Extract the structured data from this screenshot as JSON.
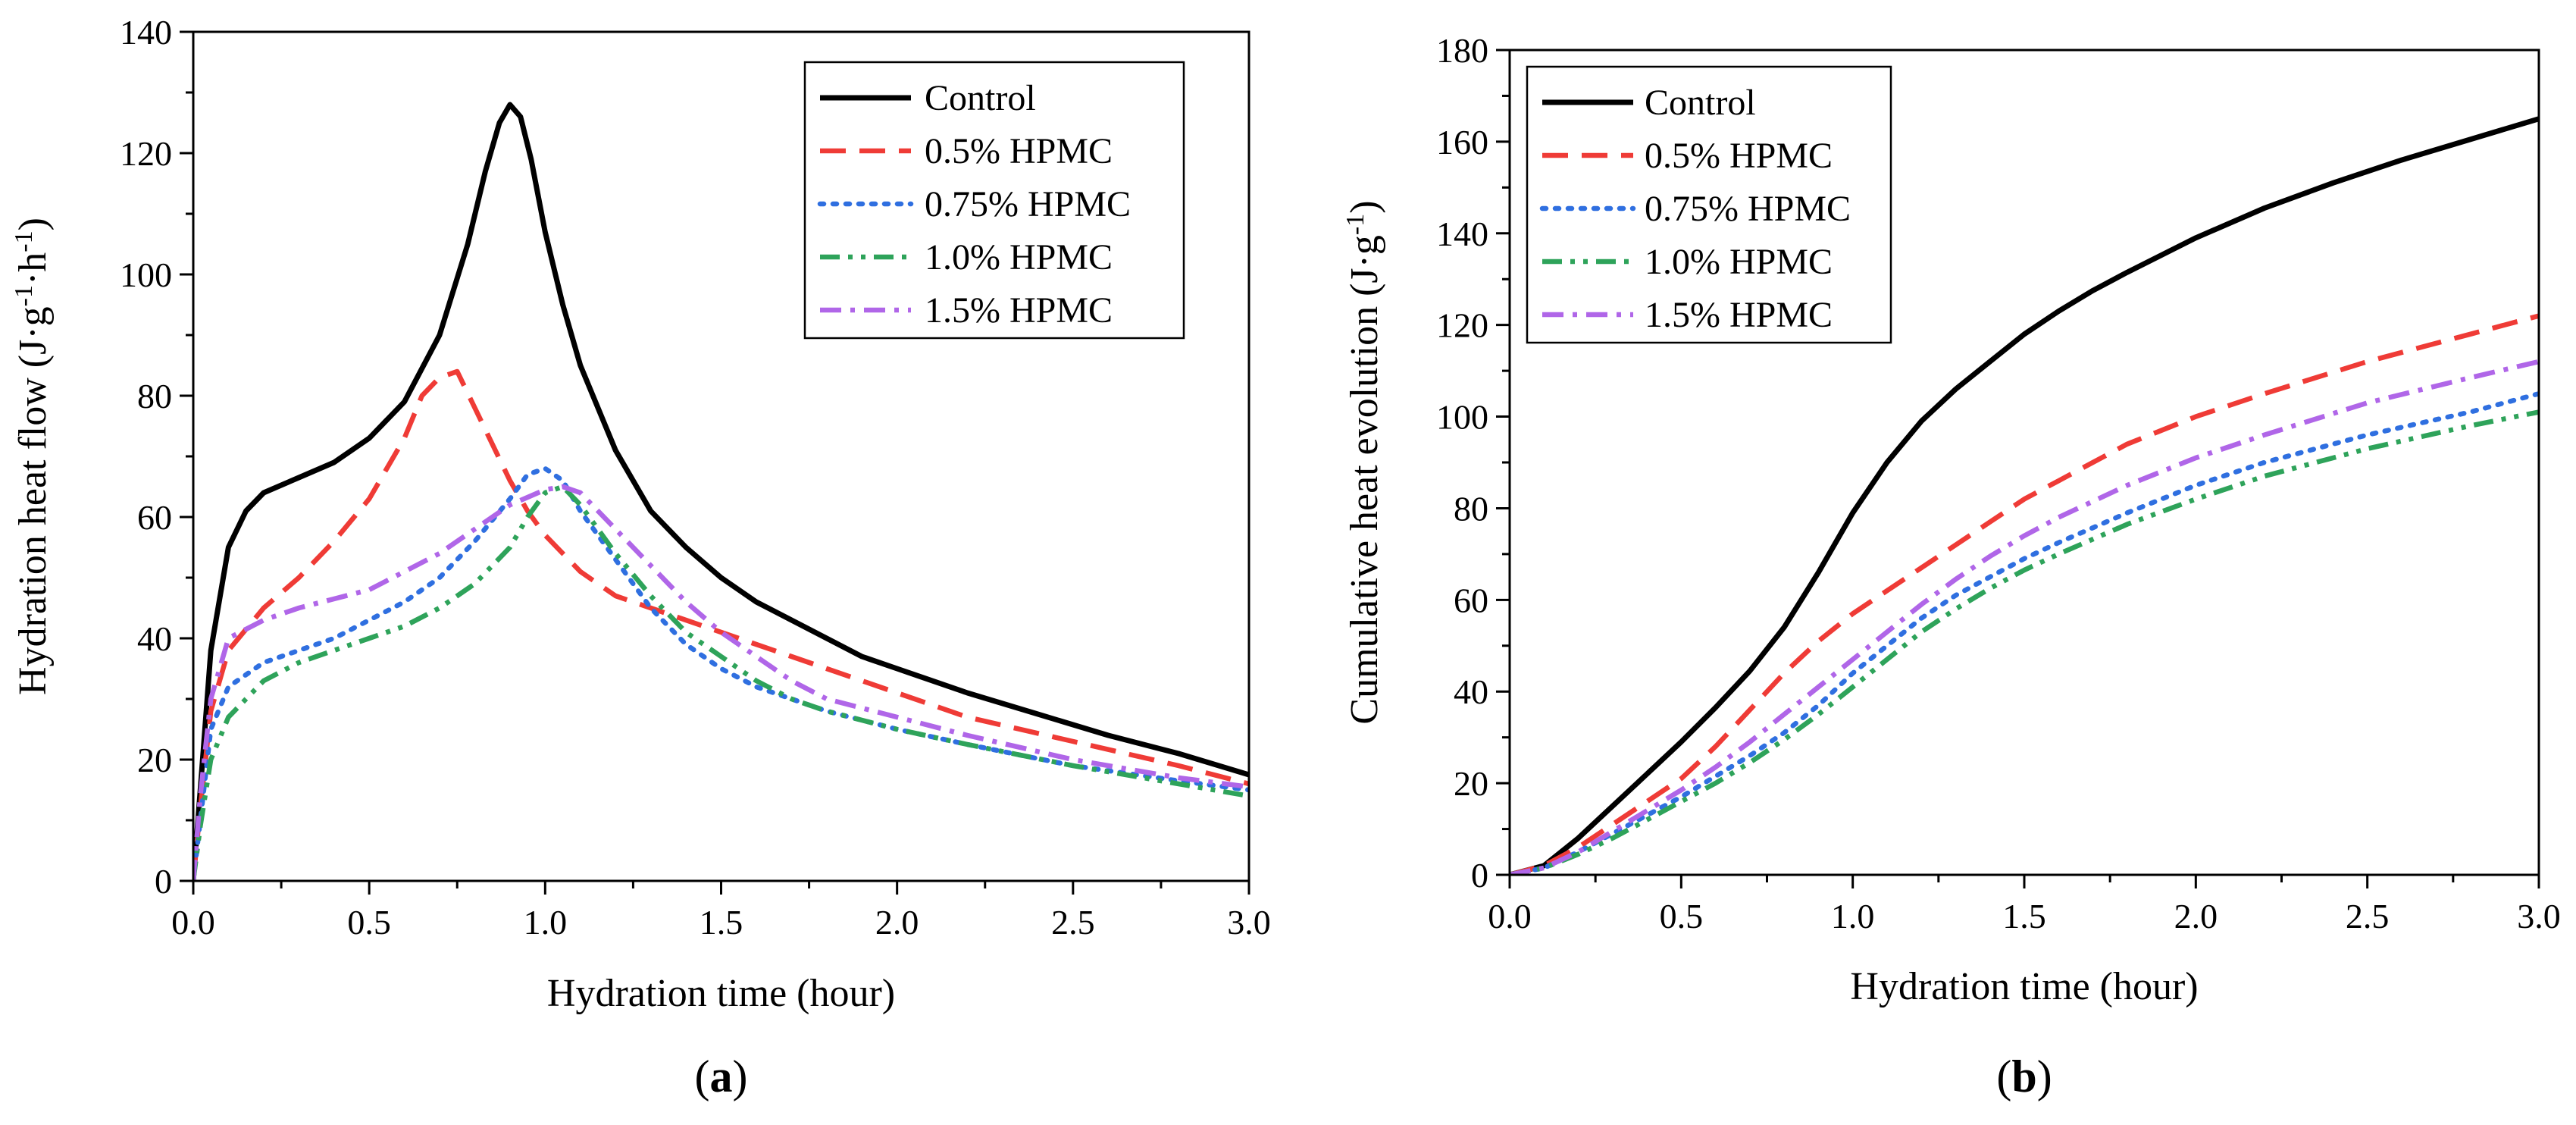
{
  "series_styles": [
    {
      "name": "Control",
      "color": "#000000",
      "dash": "solid"
    },
    {
      "name": "0.5% HPMC",
      "color": "#ef3b36",
      "dash": "dashed"
    },
    {
      "name": "0.75% HPMC",
      "color": "#2f6fe0",
      "dash": "dotted"
    },
    {
      "name": "1.0% HPMC",
      "color": "#2ea35a",
      "dash": "dash-dot-dot"
    },
    {
      "name": "1.5% HPMC",
      "color": "#b066e8",
      "dash": "dash-dot"
    }
  ],
  "chart_data": [
    {
      "panel": "(a)",
      "panel_letter": "a",
      "type": "line",
      "title": "",
      "xlabel": "Hydration time (hour)",
      "ylabel_parts": [
        "Hydration heat flow (J·g",
        "-1",
        "·h",
        "-1",
        ")"
      ],
      "xlim": [
        0,
        3
      ],
      "ylim": [
        0,
        140
      ],
      "xticks": [
        "0.0",
        "0.5",
        "1.0",
        "1.5",
        "2.0",
        "2.5",
        "3.0"
      ],
      "yticks": [
        "0",
        "20",
        "40",
        "60",
        "80",
        "100",
        "120",
        "140"
      ],
      "legend_position": "top-right",
      "series": [
        {
          "name": "Control",
          "points": [
            [
              0,
              0
            ],
            [
              0.02,
              15
            ],
            [
              0.05,
              38
            ],
            [
              0.1,
              55
            ],
            [
              0.15,
              61
            ],
            [
              0.2,
              64
            ],
            [
              0.3,
              66.5
            ],
            [
              0.4,
              69
            ],
            [
              0.5,
              73
            ],
            [
              0.6,
              79
            ],
            [
              0.7,
              90
            ],
            [
              0.78,
              105
            ],
            [
              0.83,
              117
            ],
            [
              0.87,
              125
            ],
            [
              0.9,
              128
            ],
            [
              0.93,
              126
            ],
            [
              0.96,
              119
            ],
            [
              1.0,
              107
            ],
            [
              1.05,
              95
            ],
            [
              1.1,
              85
            ],
            [
              1.2,
              71
            ],
            [
              1.3,
              61
            ],
            [
              1.4,
              55
            ],
            [
              1.5,
              50
            ],
            [
              1.6,
              46
            ],
            [
              1.7,
              43
            ],
            [
              1.8,
              40
            ],
            [
              1.9,
              37
            ],
            [
              2.0,
              35
            ],
            [
              2.2,
              31
            ],
            [
              2.4,
              27.5
            ],
            [
              2.6,
              24
            ],
            [
              2.8,
              21
            ],
            [
              3.0,
              17.5
            ]
          ]
        },
        {
          "name": "0.5% HPMC",
          "points": [
            [
              0,
              0
            ],
            [
              0.02,
              12
            ],
            [
              0.05,
              28
            ],
            [
              0.1,
              38
            ],
            [
              0.2,
              45
            ],
            [
              0.3,
              50
            ],
            [
              0.4,
              56
            ],
            [
              0.5,
              63
            ],
            [
              0.6,
              73
            ],
            [
              0.65,
              80
            ],
            [
              0.7,
              83
            ],
            [
              0.75,
              84
            ],
            [
              0.8,
              78
            ],
            [
              0.85,
              72
            ],
            [
              0.9,
              66
            ],
            [
              0.95,
              61
            ],
            [
              1.0,
              57
            ],
            [
              1.1,
              51
            ],
            [
              1.2,
              47
            ],
            [
              1.3,
              45
            ],
            [
              1.4,
              43
            ],
            [
              1.5,
              41
            ],
            [
              1.6,
              39
            ],
            [
              1.7,
              37
            ],
            [
              1.8,
              35
            ],
            [
              2.0,
              31
            ],
            [
              2.2,
              27
            ],
            [
              2.5,
              23
            ],
            [
              2.8,
              19
            ],
            [
              3.0,
              16
            ]
          ]
        },
        {
          "name": "0.75% HPMC",
          "points": [
            [
              0,
              0
            ],
            [
              0.02,
              10
            ],
            [
              0.05,
              25
            ],
            [
              0.1,
              32
            ],
            [
              0.2,
              36
            ],
            [
              0.3,
              38
            ],
            [
              0.4,
              40
            ],
            [
              0.5,
              43
            ],
            [
              0.6,
              46
            ],
            [
              0.7,
              50
            ],
            [
              0.8,
              56
            ],
            [
              0.9,
              63
            ],
            [
              0.95,
              67
            ],
            [
              1.0,
              68
            ],
            [
              1.05,
              66
            ],
            [
              1.1,
              61
            ],
            [
              1.2,
              53
            ],
            [
              1.3,
              45
            ],
            [
              1.4,
              39
            ],
            [
              1.5,
              35
            ],
            [
              1.6,
              32
            ],
            [
              1.7,
              30
            ],
            [
              1.8,
              28
            ],
            [
              2.0,
              25
            ],
            [
              2.2,
              22.5
            ],
            [
              2.5,
              19
            ],
            [
              2.8,
              16.5
            ],
            [
              3.0,
              15
            ]
          ]
        },
        {
          "name": "1.0% HPMC",
          "points": [
            [
              0,
              0
            ],
            [
              0.02,
              9
            ],
            [
              0.05,
              20
            ],
            [
              0.1,
              27
            ],
            [
              0.2,
              33
            ],
            [
              0.3,
              36
            ],
            [
              0.4,
              38
            ],
            [
              0.5,
              40
            ],
            [
              0.6,
              42
            ],
            [
              0.7,
              45
            ],
            [
              0.8,
              49
            ],
            [
              0.9,
              55
            ],
            [
              0.95,
              60
            ],
            [
              1.0,
              64
            ],
            [
              1.05,
              65
            ],
            [
              1.1,
              62
            ],
            [
              1.2,
              54
            ],
            [
              1.3,
              47
            ],
            [
              1.4,
              41
            ],
            [
              1.5,
              37
            ],
            [
              1.6,
              33
            ],
            [
              1.7,
              30
            ],
            [
              1.8,
              28
            ],
            [
              2.0,
              25
            ],
            [
              2.2,
              22.5
            ],
            [
              2.5,
              19
            ],
            [
              2.8,
              16
            ],
            [
              3.0,
              14
            ]
          ]
        },
        {
          "name": "1.5% HPMC",
          "points": [
            [
              0,
              0
            ],
            [
              0.02,
              14
            ],
            [
              0.05,
              30
            ],
            [
              0.1,
              40
            ],
            [
              0.2,
              43
            ],
            [
              0.3,
              45
            ],
            [
              0.4,
              46.5
            ],
            [
              0.5,
              48
            ],
            [
              0.6,
              51
            ],
            [
              0.7,
              54
            ],
            [
              0.8,
              58
            ],
            [
              0.9,
              62
            ],
            [
              1.0,
              64.5
            ],
            [
              1.05,
              65
            ],
            [
              1.1,
              64
            ],
            [
              1.2,
              58
            ],
            [
              1.3,
              52
            ],
            [
              1.4,
              46
            ],
            [
              1.5,
              41
            ],
            [
              1.6,
              37
            ],
            [
              1.7,
              33
            ],
            [
              1.8,
              30
            ],
            [
              2.0,
              27
            ],
            [
              2.2,
              24
            ],
            [
              2.5,
              20
            ],
            [
              2.8,
              17
            ],
            [
              3.0,
              15.5
            ]
          ]
        }
      ]
    },
    {
      "panel": "(b)",
      "panel_letter": "b",
      "type": "line",
      "title": "",
      "xlabel": "Hydration time (hour)",
      "ylabel_parts": [
        "Cumulative heat evolution (J·g",
        "-1",
        ")"
      ],
      "xlim": [
        0,
        3
      ],
      "ylim": [
        0,
        180
      ],
      "xticks": [
        "0.0",
        "0.5",
        "1.0",
        "1.5",
        "2.0",
        "2.5",
        "3.0"
      ],
      "yticks": [
        "0",
        "20",
        "40",
        "60",
        "80",
        "100",
        "120",
        "140",
        "160",
        "180"
      ],
      "legend_position": "top-left",
      "series": [
        {
          "name": "Control",
          "points": [
            [
              0,
              0
            ],
            [
              0.1,
              2
            ],
            [
              0.2,
              8
            ],
            [
              0.3,
              15
            ],
            [
              0.4,
              22
            ],
            [
              0.5,
              29
            ],
            [
              0.6,
              36.5
            ],
            [
              0.7,
              44.5
            ],
            [
              0.8,
              54
            ],
            [
              0.9,
              66
            ],
            [
              1.0,
              79
            ],
            [
              1.1,
              90
            ],
            [
              1.2,
              99
            ],
            [
              1.3,
              106
            ],
            [
              1.4,
              112
            ],
            [
              1.5,
              118
            ],
            [
              1.6,
              123
            ],
            [
              1.7,
              127.5
            ],
            [
              1.8,
              131.5
            ],
            [
              2.0,
              139
            ],
            [
              2.2,
              145.5
            ],
            [
              2.4,
              151
            ],
            [
              2.6,
              156
            ],
            [
              2.8,
              160.5
            ],
            [
              3.0,
              165
            ]
          ]
        },
        {
          "name": "0.5% HPMC",
          "points": [
            [
              0,
              0
            ],
            [
              0.1,
              2
            ],
            [
              0.2,
              6
            ],
            [
              0.3,
              11
            ],
            [
              0.4,
              16
            ],
            [
              0.5,
              21
            ],
            [
              0.6,
              28
            ],
            [
              0.7,
              36
            ],
            [
              0.8,
              44
            ],
            [
              0.9,
              51
            ],
            [
              1.0,
              57
            ],
            [
              1.1,
              62
            ],
            [
              1.2,
              67
            ],
            [
              1.3,
              72
            ],
            [
              1.4,
              77
            ],
            [
              1.5,
              82
            ],
            [
              1.6,
              86
            ],
            [
              1.8,
              94
            ],
            [
              2.0,
              100
            ],
            [
              2.2,
              105
            ],
            [
              2.5,
              112
            ],
            [
              2.8,
              118
            ],
            [
              3.0,
              122
            ]
          ]
        },
        {
          "name": "0.75% HPMC",
          "points": [
            [
              0,
              0
            ],
            [
              0.1,
              1.5
            ],
            [
              0.2,
              5
            ],
            [
              0.3,
              9
            ],
            [
              0.4,
              13
            ],
            [
              0.5,
              17
            ],
            [
              0.6,
              21.5
            ],
            [
              0.7,
              26
            ],
            [
              0.8,
              31
            ],
            [
              0.9,
              37
            ],
            [
              1.0,
              44
            ],
            [
              1.1,
              50
            ],
            [
              1.2,
              56
            ],
            [
              1.3,
              61
            ],
            [
              1.4,
              65
            ],
            [
              1.5,
              69
            ],
            [
              1.6,
              72.5
            ],
            [
              1.8,
              79
            ],
            [
              2.0,
              85
            ],
            [
              2.2,
              90
            ],
            [
              2.5,
              96
            ],
            [
              2.8,
              101
            ],
            [
              3.0,
              105
            ]
          ]
        },
        {
          "name": "1.0% HPMC",
          "points": [
            [
              0,
              0
            ],
            [
              0.1,
              1.5
            ],
            [
              0.2,
              4.5
            ],
            [
              0.3,
              8
            ],
            [
              0.4,
              12
            ],
            [
              0.5,
              16
            ],
            [
              0.6,
              20
            ],
            [
              0.7,
              24.5
            ],
            [
              0.8,
              29.5
            ],
            [
              0.9,
              35
            ],
            [
              1.0,
              41
            ],
            [
              1.1,
              47
            ],
            [
              1.2,
              53
            ],
            [
              1.3,
              58
            ],
            [
              1.4,
              62.5
            ],
            [
              1.5,
              66.5
            ],
            [
              1.6,
              70
            ],
            [
              1.8,
              76.5
            ],
            [
              2.0,
              82
            ],
            [
              2.2,
              87
            ],
            [
              2.5,
              93
            ],
            [
              2.8,
              98
            ],
            [
              3.0,
              101
            ]
          ]
        },
        {
          "name": "1.5% HPMC",
          "points": [
            [
              0,
              0
            ],
            [
              0.1,
              1.5
            ],
            [
              0.2,
              5
            ],
            [
              0.3,
              9.5
            ],
            [
              0.4,
              14
            ],
            [
              0.5,
              18.5
            ],
            [
              0.6,
              23.5
            ],
            [
              0.7,
              29
            ],
            [
              0.8,
              35
            ],
            [
              0.9,
              41
            ],
            [
              1.0,
              47
            ],
            [
              1.1,
              53
            ],
            [
              1.2,
              59
            ],
            [
              1.3,
              64.5
            ],
            [
              1.4,
              69.5
            ],
            [
              1.5,
              74
            ],
            [
              1.6,
              78
            ],
            [
              1.8,
              85
            ],
            [
              2.0,
              91
            ],
            [
              2.2,
              96
            ],
            [
              2.5,
              103
            ],
            [
              2.8,
              108.5
            ],
            [
              3.0,
              112
            ]
          ]
        }
      ]
    }
  ]
}
